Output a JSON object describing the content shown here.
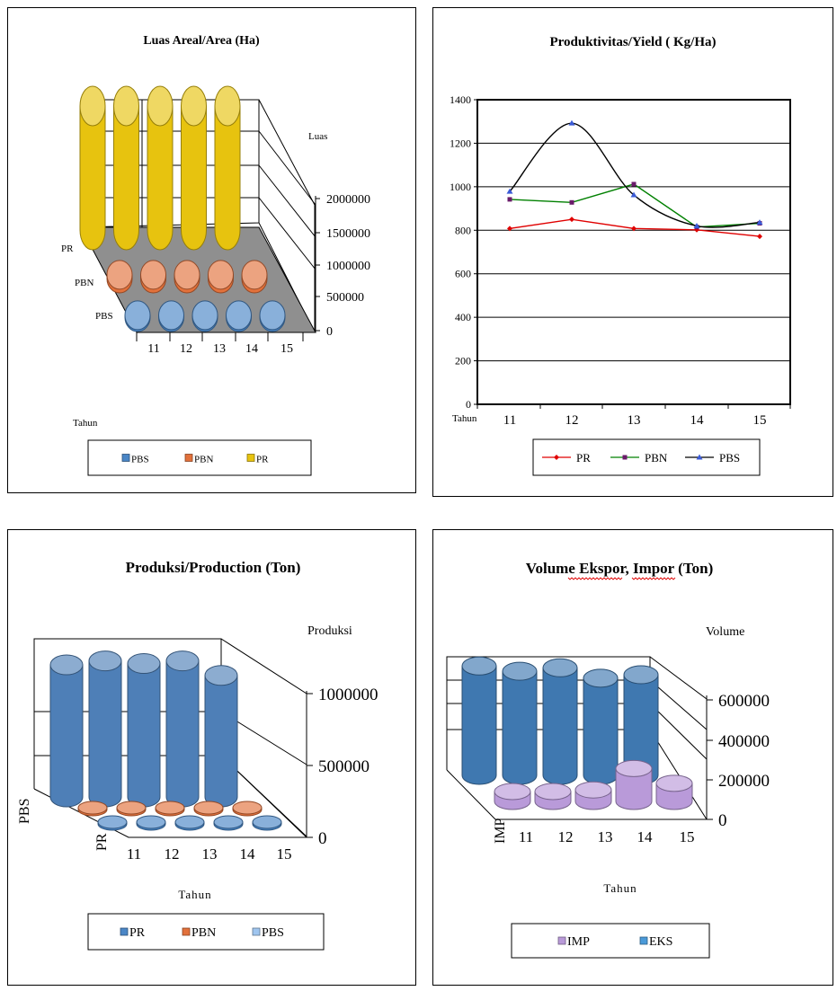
{
  "colors": {
    "pr_yellow": "#e7c30f",
    "pbn_orange": "#e2713b",
    "pbs_blue": "#4a86c6",
    "prod_blue": "#4e7fb7",
    "imp_purple": "#b99ad9",
    "eks_blue": "#3f78b0",
    "floor_gray": "#8f8f8f",
    "line_pr": "#e00000",
    "line_pbn": "#008000",
    "line_pbs": "#000000",
    "marker_pbs": "#3b5bd6",
    "marker_pbn": "#6a1b6a"
  },
  "chart_data": [
    {
      "type": "bar",
      "style": "3d-cylinder",
      "title": "Luas Areal/Area (Ha)",
      "xlabel": "Tahun",
      "zlabel": "Luas",
      "categories": [
        "11",
        "12",
        "13",
        "14",
        "15"
      ],
      "depth_labels": [
        "PR",
        "PBN",
        "PBS"
      ],
      "yticks": [
        "2000000",
        "1500000",
        "1000000",
        "500000",
        "0"
      ],
      "ylim": [
        0,
        2000000
      ],
      "series": [
        {
          "name": "PBS",
          "color": "pbs_blue",
          "values": [
            30000,
            30000,
            30000,
            30000,
            30000
          ]
        },
        {
          "name": "PBN",
          "color": "pbn_orange",
          "values": [
            60000,
            60000,
            60000,
            60000,
            60000
          ]
        },
        {
          "name": "PR",
          "color": "pr_yellow",
          "values": [
            2000000,
            2000000,
            2000000,
            2000000,
            2000000
          ]
        }
      ],
      "legend": [
        "PBS",
        "PBN",
        "PR"
      ],
      "legend_position": "bottom"
    },
    {
      "type": "line",
      "title": "Produktivitas/Yield ( Kg/Ha)",
      "xlabel": "Tahun",
      "categories": [
        "11",
        "12",
        "13",
        "14",
        "15"
      ],
      "yticks": [
        0,
        200,
        400,
        600,
        800,
        1000,
        1200,
        1400
      ],
      "ylim": [
        0,
        1400
      ],
      "grid": true,
      "series": [
        {
          "name": "PR",
          "color": "line_pr",
          "marker": "diamond",
          "values": [
            808,
            850,
            808,
            802,
            772
          ]
        },
        {
          "name": "PBN",
          "color": "line_pbn",
          "marker": "square",
          "values": [
            942,
            928,
            1012,
            815,
            832
          ]
        },
        {
          "name": "PBS",
          "color": "line_pbs",
          "marker": "triangle",
          "values": [
            978,
            1292,
            962,
            820,
            836
          ]
        }
      ],
      "legend_position": "bottom"
    },
    {
      "type": "bar",
      "style": "3d-cylinder",
      "title": "Produksi/Production (Ton)",
      "xlabel": "Tahun",
      "zlabel": "Produksi",
      "categories": [
        "11",
        "12",
        "13",
        "14",
        "15"
      ],
      "depth_labels": [
        "PBS",
        "PR"
      ],
      "yticks": [
        "1000000",
        "500000",
        "0"
      ],
      "ylim": [
        0,
        1000000
      ],
      "series": [
        {
          "name": "PR",
          "color": "pbs_blue",
          "values": [
            25000,
            25000,
            25000,
            25000,
            25000
          ]
        },
        {
          "name": "PBN",
          "color": "pbn_orange",
          "values": [
            25000,
            25000,
            25000,
            25000,
            25000
          ]
        },
        {
          "name": "PBS",
          "color": "prod_blue",
          "values": [
            1000000,
            1030000,
            1010000,
            1030000,
            920000
          ]
        }
      ],
      "legend": [
        "PR",
        "PBN",
        "PBS"
      ],
      "legend_position": "bottom"
    },
    {
      "type": "bar",
      "style": "3d-cylinder",
      "title": "Volume Ekspor,  Impor (Ton)",
      "xlabel": "Tahun",
      "zlabel": "Volume",
      "categories": [
        "11",
        "12",
        "13",
        "14",
        "15"
      ],
      "depth_labels": [
        "IMP"
      ],
      "yticks": [
        "600000",
        "400000",
        "200000",
        "0"
      ],
      "ylim": [
        0,
        600000
      ],
      "series": [
        {
          "name": "IMP",
          "color": "imp_purple",
          "values": [
            60000,
            60000,
            70000,
            200000,
            110000
          ]
        },
        {
          "name": "EKS",
          "color": "eks_blue",
          "values": [
            630000,
            600000,
            620000,
            560000,
            580000
          ]
        }
      ],
      "legend": [
        "IMP",
        "EKS"
      ],
      "legend_position": "bottom"
    }
  ]
}
